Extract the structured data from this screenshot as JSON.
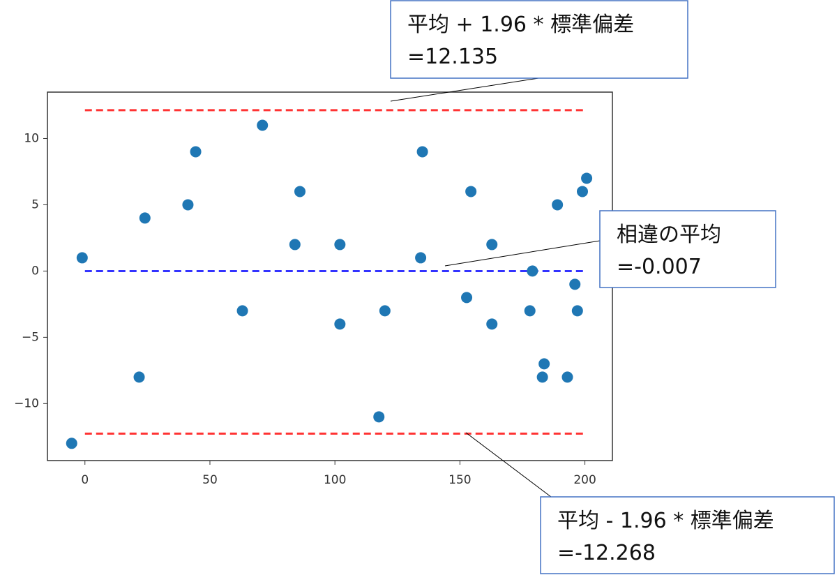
{
  "chart_data": {
    "type": "scatter",
    "xlim": [
      -15,
      211
    ],
    "ylim": [
      -14.3,
      13.5
    ],
    "xticks": [
      0,
      50,
      100,
      150,
      200
    ],
    "yticks": [
      {
        "value": -10,
        "label": "−10"
      },
      {
        "value": -5,
        "label": "−5"
      },
      0,
      5,
      10
    ],
    "series": [
      {
        "color": "#1f77b4",
        "x": [
          -5.3,
          -1.1,
          21.7,
          24,
          41.2,
          44.3,
          63,
          71,
          84,
          86,
          102,
          102,
          117.6,
          120,
          134.3,
          135,
          152.7,
          154.4,
          162.8,
          162.8,
          178,
          179,
          183.7,
          183,
          189,
          193,
          196,
          197,
          199,
          200.7
        ],
        "values": [
          -13,
          1,
          -8,
          4,
          5,
          9,
          -3,
          11,
          2,
          6,
          2,
          -4,
          -11,
          -3,
          1,
          9,
          -2,
          6,
          2,
          -4,
          -3,
          0,
          -7,
          -8,
          5,
          -8,
          -1,
          -3,
          6,
          7
        ]
      }
    ],
    "hlines": [
      {
        "value": 12.135,
        "color": "#ff3333"
      },
      {
        "value": -0.007,
        "color": "#3333ff"
      },
      {
        "value": -12.268,
        "color": "#ff3333"
      }
    ],
    "hline_xlim": [
      0,
      200
    ],
    "annotations": [
      {
        "lines": [
          "平均 + 1.96 * 標準偏差",
          "=12.135"
        ]
      },
      {
        "lines": [
          "相違の平均",
          "=-0.007"
        ]
      },
      {
        "lines": [
          "平均 - 1.96 * 標準偏差",
          "=-12.268"
        ]
      }
    ]
  }
}
